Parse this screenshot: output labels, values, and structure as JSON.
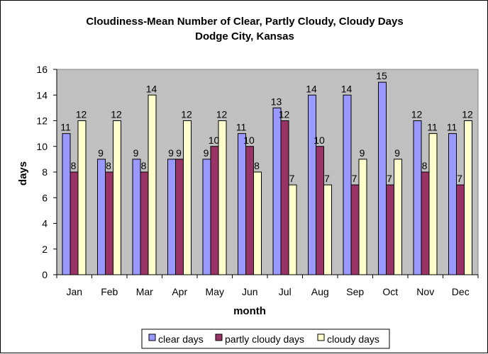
{
  "chart_data": {
    "type": "bar",
    "title": "Cloudiness-Mean Number of Clear, Partly Cloudy, Cloudy Days",
    "subtitle": "Dodge City, Kansas",
    "xlabel": "month",
    "ylabel": "days",
    "categories": [
      "Jan",
      "Feb",
      "Mar",
      "Apr",
      "May",
      "Jun",
      "Jul",
      "Aug",
      "Sep",
      "Oct",
      "Nov",
      "Dec"
    ],
    "series": [
      {
        "name": "clear days",
        "color": "#9999ff",
        "values": [
          11,
          9,
          9,
          9,
          9,
          11,
          13,
          14,
          14,
          15,
          12,
          11
        ]
      },
      {
        "name": "partly cloudy days",
        "color": "#993366",
        "values": [
          8,
          8,
          8,
          9,
          10,
          10,
          12,
          10,
          7,
          7,
          8,
          7
        ]
      },
      {
        "name": "cloudy days",
        "color": "#ffffcc",
        "values": [
          12,
          12,
          14,
          12,
          12,
          8,
          7,
          7,
          9,
          9,
          11,
          12
        ]
      }
    ],
    "ylim": [
      0,
      16
    ],
    "yticks": [
      0,
      2,
      4,
      6,
      8,
      10,
      12,
      14,
      16
    ],
    "plot_background": "#c0c0c0",
    "grid": false,
    "data_labels": true,
    "legend_position": "bottom"
  }
}
